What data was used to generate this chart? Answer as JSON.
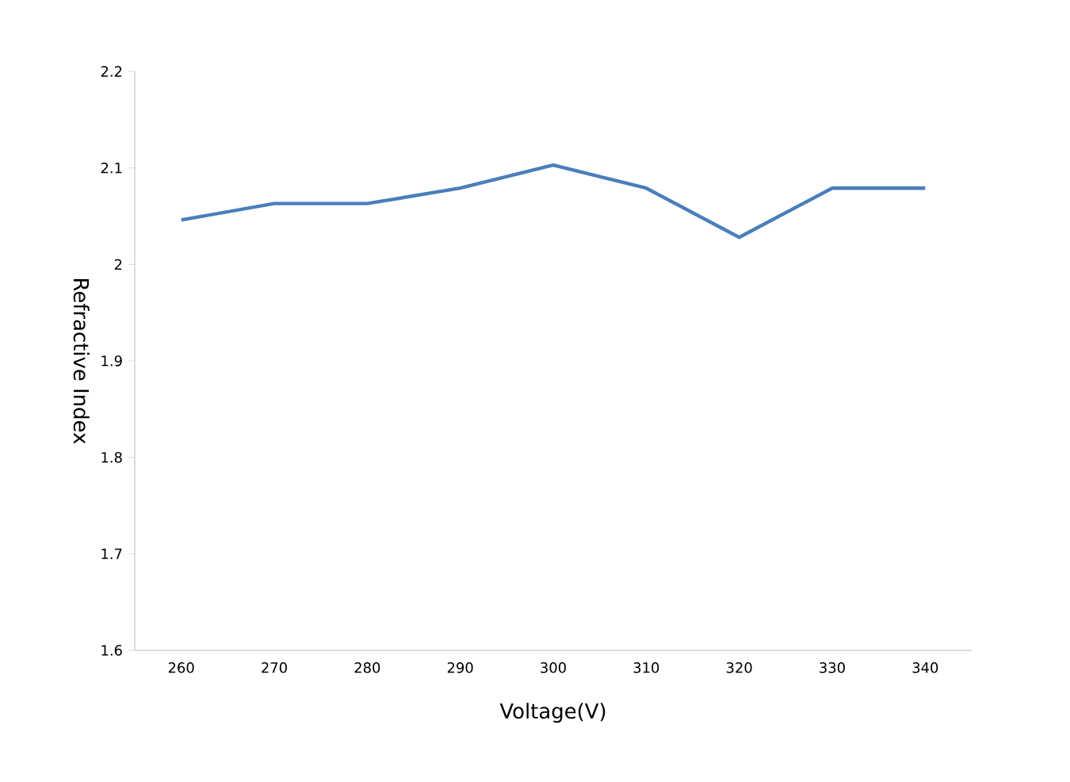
{
  "chart_data": {
    "type": "line",
    "xlabel": "Voltage(V)",
    "ylabel": "Refractive Index",
    "categories": [
      "260",
      "270",
      "280",
      "290",
      "300",
      "310",
      "320",
      "330",
      "340"
    ],
    "series": [
      {
        "color": "#4a7ebb",
        "values": [
          2.046,
          2.063,
          2.063,
          2.079,
          2.103,
          2.079,
          2.028,
          2.079,
          2.079
        ]
      }
    ],
    "ylim": [
      1.6,
      2.2
    ],
    "yticks": [
      1.6,
      1.7,
      1.8,
      1.9,
      2,
      2.1,
      2.2
    ],
    "grid": false,
    "marker": "none",
    "line_style": "solid"
  }
}
